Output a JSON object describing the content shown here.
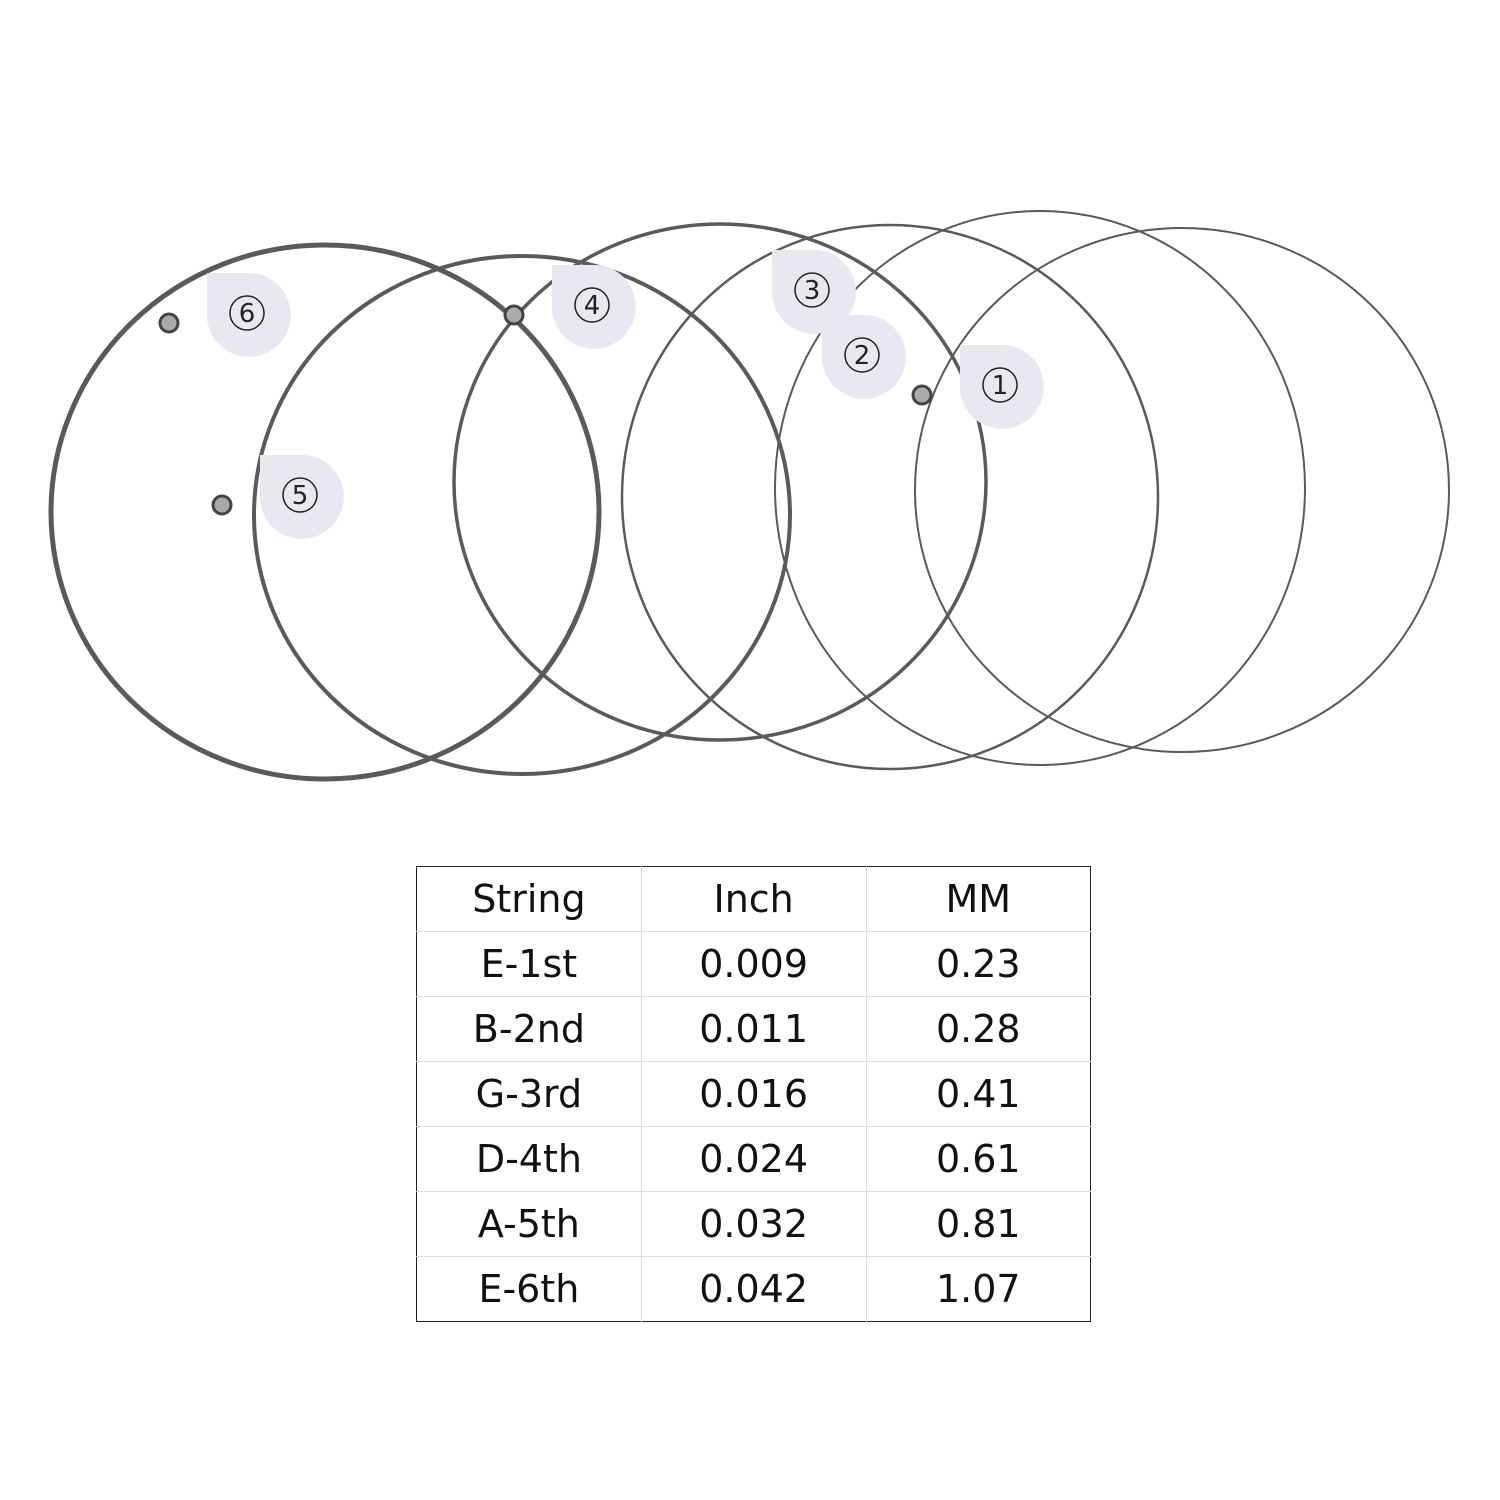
{
  "photo": {
    "tags": [
      "1",
      "2",
      "3",
      "4",
      "5",
      "6"
    ],
    "string_color": "#555555",
    "tag_color": "#e9e8f0"
  },
  "table": {
    "headers": [
      "String",
      "Inch",
      "MM"
    ],
    "rows": [
      [
        "E-1st",
        "0.009",
        "0.23"
      ],
      [
        "B-2nd",
        "0.011",
        "0.28"
      ],
      [
        "G-3rd",
        "0.016",
        "0.41"
      ],
      [
        "D-4th",
        "0.024",
        "0.61"
      ],
      [
        "A-5th",
        "0.032",
        "0.81"
      ],
      [
        "E-6th",
        "0.042",
        "1.07"
      ]
    ]
  }
}
